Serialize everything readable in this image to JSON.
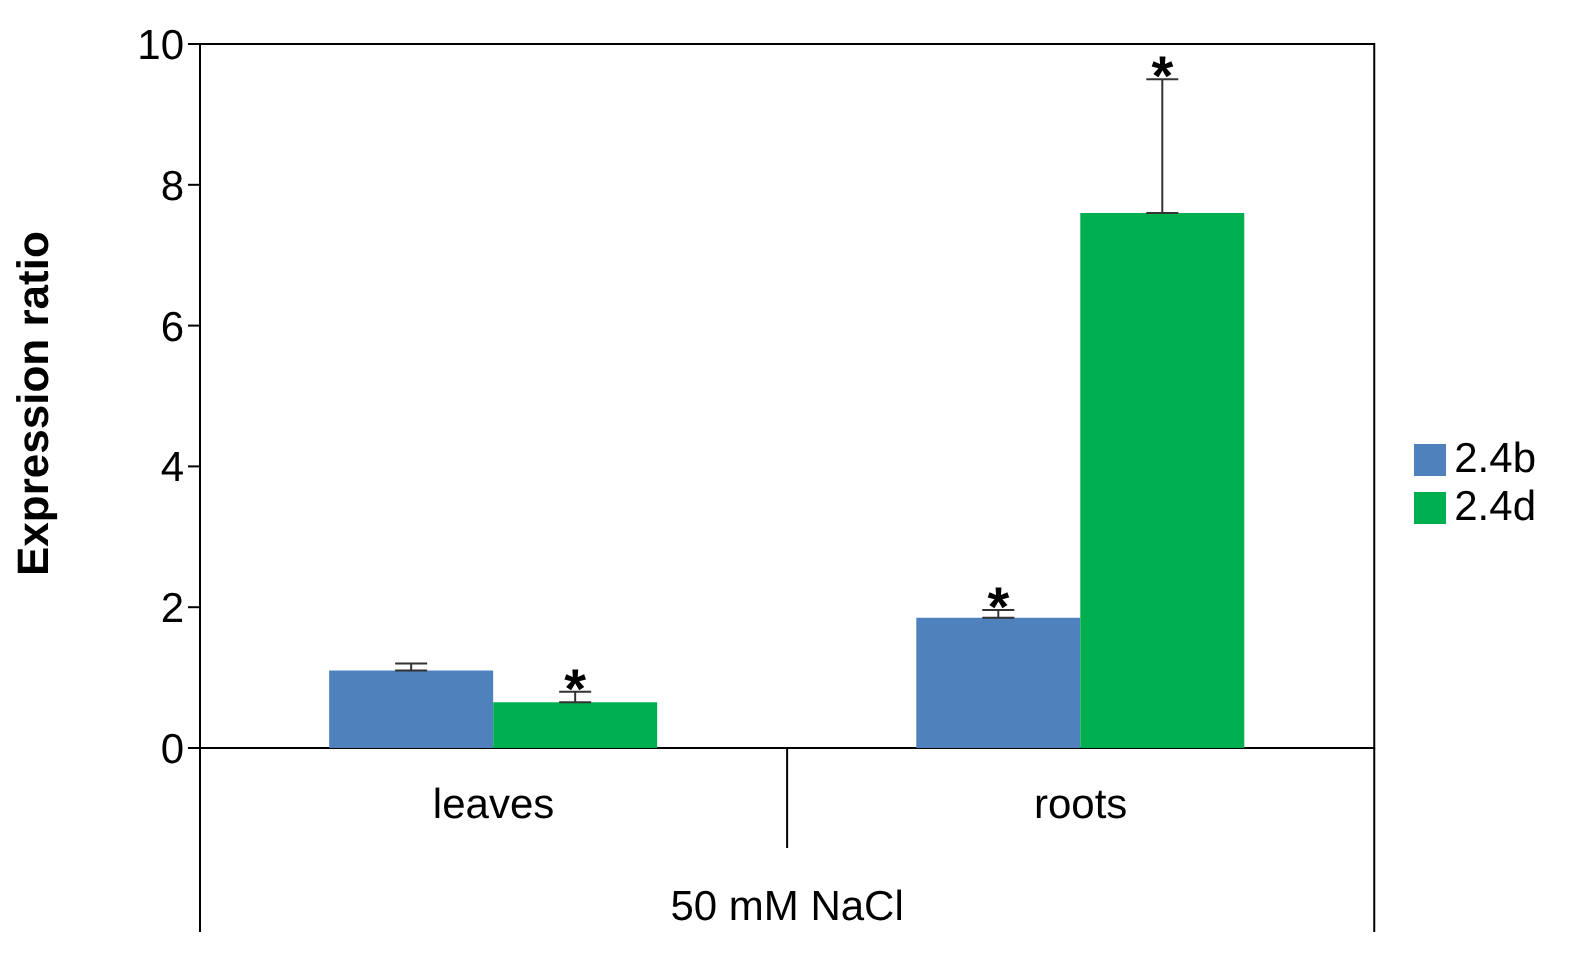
{
  "chart_data": {
    "type": "bar",
    "ylabel": "Expression ratio",
    "xlabel": "50 mM NaCl",
    "categories": [
      "leaves",
      "roots"
    ],
    "series": [
      {
        "name": "2.4b",
        "color": "#4f81bd",
        "values": [
          1.1,
          1.85
        ],
        "errors": [
          [
            1.1,
            1.2
          ],
          [
            1.85,
            1.96
          ]
        ],
        "value_labels": [
          null,
          "*"
        ]
      },
      {
        "name": "2.4d",
        "color": "#00b050",
        "values": [
          0.65,
          7.6
        ],
        "errors": [
          [
            0.65,
            0.8
          ],
          [
            7.6,
            9.5
          ]
        ],
        "value_labels": [
          "*",
          "*"
        ]
      }
    ],
    "ylim": [
      0,
      10
    ],
    "yticks": [
      0,
      2,
      4,
      6,
      8,
      10
    ],
    "grid": false,
    "legend": "right"
  }
}
